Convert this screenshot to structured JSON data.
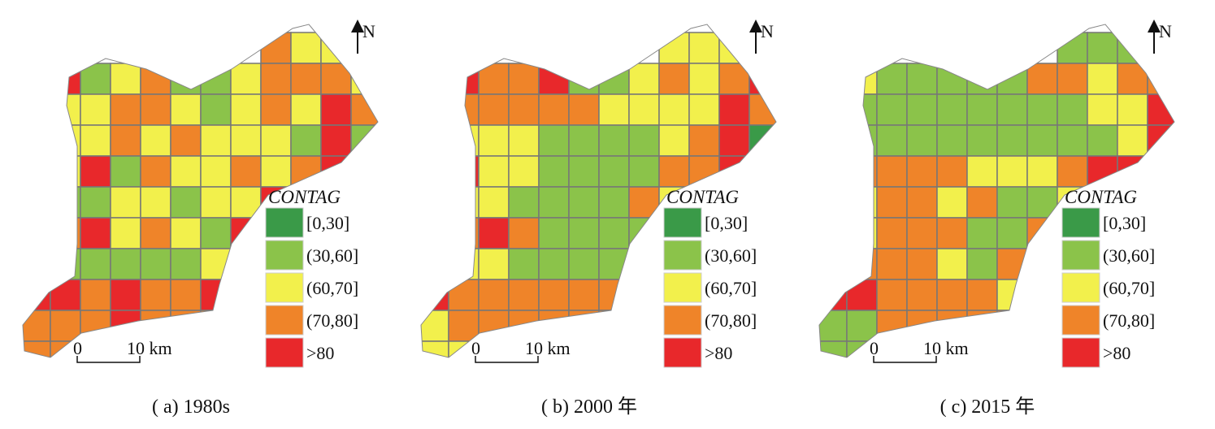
{
  "panels": [
    {
      "caption": "( a) 1980s"
    },
    {
      "caption": "( b) 2000 年"
    },
    {
      "caption": "( c) 2015 年"
    }
  ],
  "north": "N",
  "scale": {
    "start": "0",
    "end": "10 km"
  },
  "legend": {
    "title": "CONTAG",
    "items": [
      {
        "label": "[0,30]",
        "color": "#3a9a48"
      },
      {
        "label": "(30,60]",
        "color": "#8bc34a"
      },
      {
        "label": "(60,70]",
        "color": "#f2f04c"
      },
      {
        "label": "(70,80]",
        "color": "#ef8429"
      },
      {
        "label": ">80",
        "color": "#e8282b"
      }
    ]
  }
}
